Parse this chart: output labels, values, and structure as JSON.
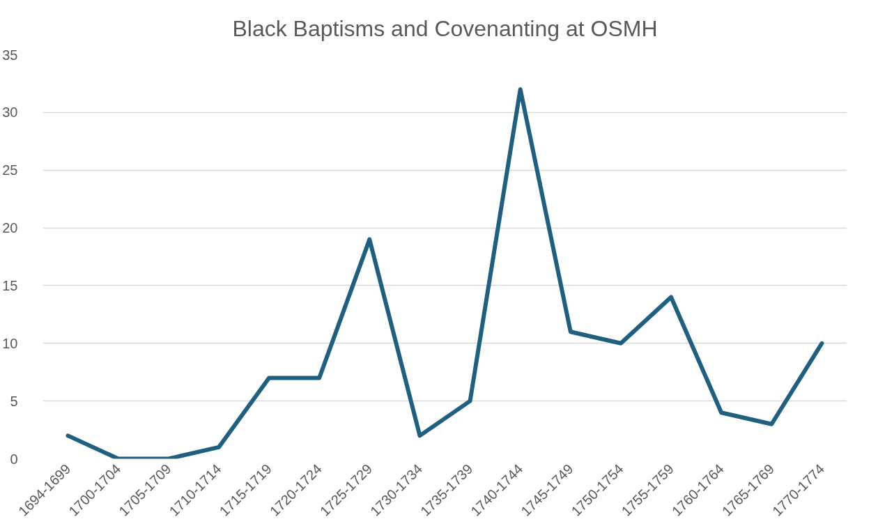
{
  "chart_data": {
    "type": "line",
    "title": "Black Baptisms and Covenanting at OSMH",
    "categories": [
      "1694-1699",
      "1700-1704",
      "1705-1709",
      "1710-1714",
      "1715-1719",
      "1720-1724",
      "1725-1729",
      "1730-1734",
      "1735-1739",
      "1740-1744",
      "1745-1749",
      "1750-1754",
      "1755-1759",
      "1760-1764",
      "1765-1769",
      "1770-1774"
    ],
    "values": [
      2,
      0,
      0,
      1,
      7,
      7,
      19,
      2,
      5,
      32,
      11,
      10,
      14,
      4,
      3,
      10
    ],
    "color": "#1f5f7f",
    "ylim": [
      0,
      35
    ],
    "yticks": [
      0,
      5,
      10,
      15,
      20,
      25,
      30,
      35
    ],
    "grid": "y"
  }
}
